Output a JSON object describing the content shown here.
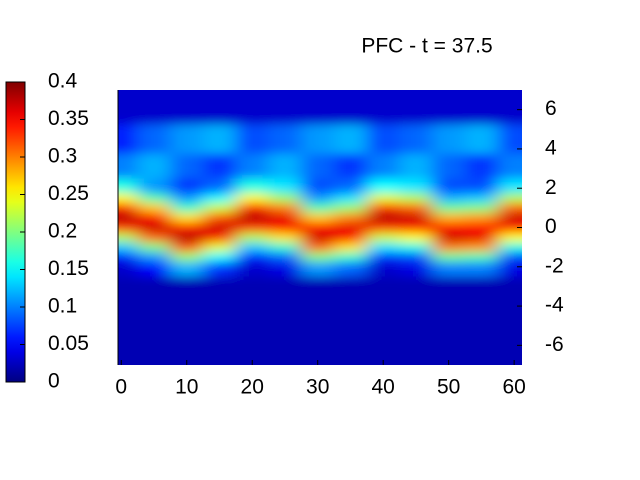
{
  "chart_data": {
    "type": "heatmap",
    "title": "PFC - t = 37.5",
    "colormap": "jet",
    "x": [
      0,
      5,
      10,
      15,
      20,
      25,
      30,
      35,
      40,
      45,
      50,
      55,
      60
    ],
    "y": [
      6,
      4.5,
      3,
      2,
      1.5,
      1,
      0.5,
      0,
      -0.5,
      -1,
      -1.5,
      -2,
      -3,
      -4.5,
      -6
    ],
    "z": [
      [
        0.03,
        0.03,
        0.03,
        0.03,
        0.03,
        0.03,
        0.03,
        0.03,
        0.03,
        0.03,
        0.03,
        0.03,
        0.03
      ],
      [
        0.06,
        0.09,
        0.11,
        0.12,
        0.08,
        0.09,
        0.11,
        0.12,
        0.08,
        0.09,
        0.11,
        0.12,
        0.08
      ],
      [
        0.1,
        0.12,
        0.09,
        0.07,
        0.1,
        0.12,
        0.09,
        0.07,
        0.1,
        0.12,
        0.09,
        0.07,
        0.1
      ],
      [
        0.16,
        0.11,
        0.07,
        0.09,
        0.16,
        0.14,
        0.08,
        0.09,
        0.15,
        0.14,
        0.08,
        0.08,
        0.14
      ],
      [
        0.25,
        0.18,
        0.11,
        0.15,
        0.25,
        0.21,
        0.11,
        0.14,
        0.24,
        0.22,
        0.12,
        0.13,
        0.22
      ],
      [
        0.34,
        0.27,
        0.17,
        0.23,
        0.34,
        0.3,
        0.18,
        0.21,
        0.33,
        0.31,
        0.19,
        0.2,
        0.31
      ],
      [
        0.38,
        0.35,
        0.26,
        0.32,
        0.38,
        0.36,
        0.27,
        0.3,
        0.38,
        0.37,
        0.28,
        0.29,
        0.37
      ],
      [
        0.33,
        0.37,
        0.34,
        0.37,
        0.33,
        0.35,
        0.35,
        0.36,
        0.33,
        0.34,
        0.35,
        0.35,
        0.34
      ],
      [
        0.22,
        0.31,
        0.38,
        0.34,
        0.22,
        0.26,
        0.37,
        0.35,
        0.23,
        0.25,
        0.37,
        0.36,
        0.25
      ],
      [
        0.13,
        0.2,
        0.32,
        0.24,
        0.13,
        0.17,
        0.31,
        0.26,
        0.14,
        0.16,
        0.3,
        0.29,
        0.16
      ],
      [
        0.06,
        0.11,
        0.21,
        0.15,
        0.06,
        0.09,
        0.2,
        0.17,
        0.07,
        0.08,
        0.19,
        0.18,
        0.08
      ],
      [
        0.03,
        0.05,
        0.12,
        0.07,
        0.03,
        0.04,
        0.11,
        0.09,
        0.03,
        0.04,
        0.1,
        0.1,
        0.04
      ],
      [
        0.02,
        0.02,
        0.02,
        0.02,
        0.02,
        0.02,
        0.02,
        0.02,
        0.02,
        0.02,
        0.02,
        0.02,
        0.02
      ],
      [
        0.02,
        0.02,
        0.02,
        0.02,
        0.02,
        0.02,
        0.02,
        0.02,
        0.02,
        0.02,
        0.02,
        0.02,
        0.02
      ],
      [
        0.02,
        0.02,
        0.02,
        0.02,
        0.02,
        0.02,
        0.02,
        0.02,
        0.02,
        0.02,
        0.02,
        0.02,
        0.02
      ]
    ],
    "xlim": [
      -0.5,
      61.2
    ],
    "xticks": [
      0,
      10,
      20,
      30,
      40,
      50,
      60
    ],
    "ylim": [
      -7,
      7
    ],
    "yticks": [
      -6,
      -4,
      -2,
      0,
      2,
      4,
      6
    ],
    "cblim": [
      0,
      0.4
    ],
    "cbticks": [
      0,
      0.05,
      0.1,
      0.15,
      0.2,
      0.25,
      0.3,
      0.35,
      0.4
    ]
  }
}
